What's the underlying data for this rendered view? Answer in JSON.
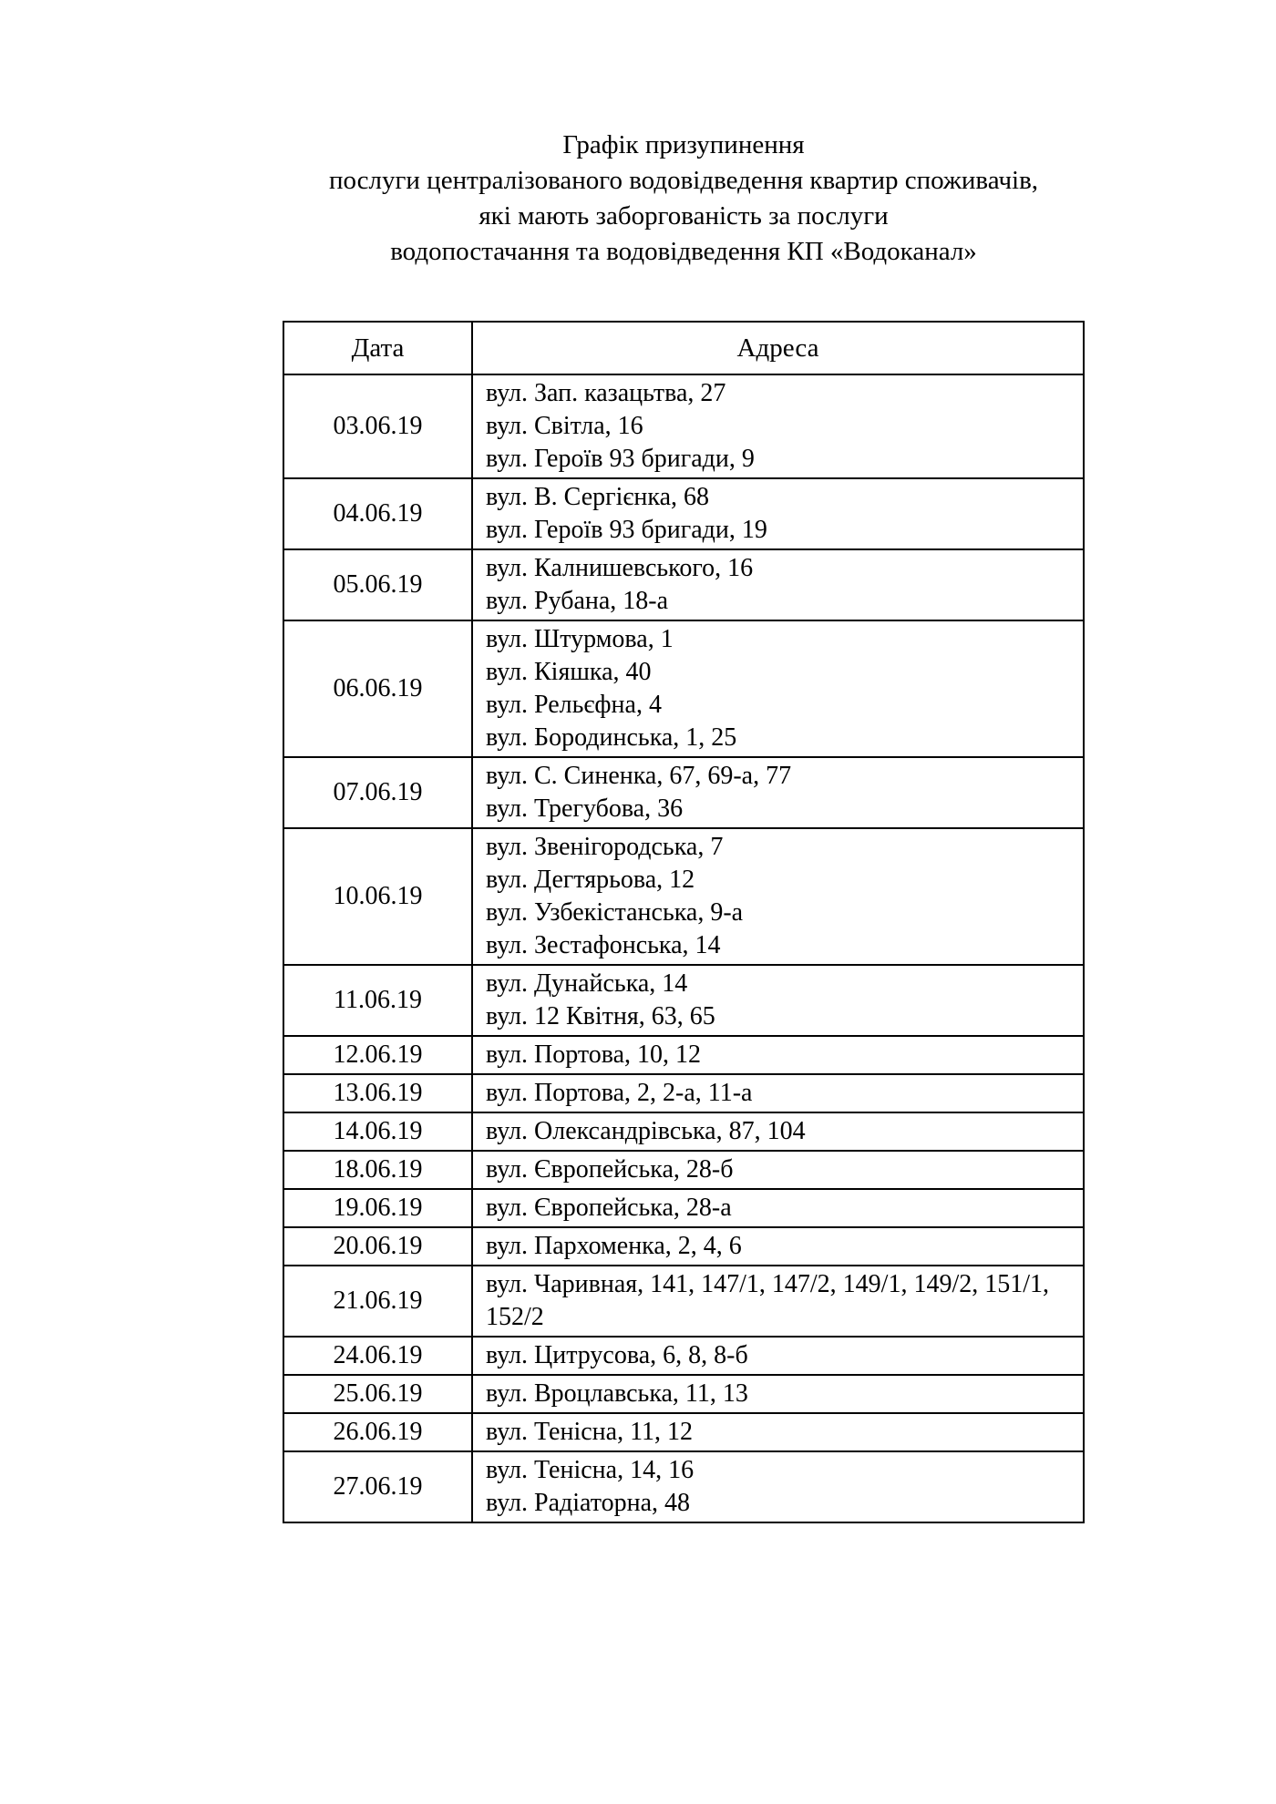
{
  "page": {
    "background_color": "#ffffff",
    "text_color": "#000000",
    "border_color": "#000000"
  },
  "title_lines": [
    "Графік призупинення",
    "послуги централізованого водовідведення квартир споживачів,",
    "які мають заборгованість за послуги",
    "водопостачання та водовідведення КП «Водоканал»"
  ],
  "table": {
    "headers": {
      "date": "Дата",
      "address": "Адреса"
    },
    "rows": [
      {
        "date": "03.06.19",
        "addresses": [
          "вул. Зап. казацьтва, 27",
          "вул. Світла, 16",
          "вул. Героїв 93 бригади, 9"
        ]
      },
      {
        "date": "04.06.19",
        "addresses": [
          "вул. В. Сергієнка, 68",
          "вул. Героїв 93 бригади, 19"
        ]
      },
      {
        "date": "05.06.19",
        "addresses": [
          "вул. Калнишевського, 16",
          "вул. Рубана, 18-а"
        ]
      },
      {
        "date": "06.06.19",
        "addresses": [
          "вул. Штурмова, 1",
          "вул. Кіяшка, 40",
          "вул. Рельєфна, 4",
          "вул. Бородинська, 1, 25"
        ]
      },
      {
        "date": "07.06.19",
        "addresses": [
          "вул. С. Синенка, 67, 69-а, 77",
          "вул. Трегубова, 36"
        ]
      },
      {
        "date": "10.06.19",
        "addresses": [
          "вул. Звенігородська, 7",
          "вул. Дегтярьова, 12",
          "вул. Узбекістанська, 9-а",
          "вул. Зестафонська, 14"
        ]
      },
      {
        "date": "11.06.19",
        "addresses": [
          "вул. Дунайська, 14",
          "вул. 12 Квітня, 63, 65"
        ]
      },
      {
        "date": "12.06.19",
        "addresses": [
          "вул. Портова, 10, 12"
        ]
      },
      {
        "date": "13.06.19",
        "addresses": [
          "вул. Портова, 2, 2-а, 11-а"
        ]
      },
      {
        "date": "14.06.19",
        "addresses": [
          "вул. Олександрівська, 87, 104"
        ]
      },
      {
        "date": "18.06.19",
        "addresses": [
          "вул. Європейська, 28-б"
        ]
      },
      {
        "date": "19.06.19",
        "addresses": [
          "вул. Європейська, 28-а"
        ]
      },
      {
        "date": "20.06.19",
        "addresses": [
          "вул. Пархоменка, 2, 4, 6"
        ]
      },
      {
        "date": "21.06.19",
        "addresses": [
          "вул. Чаривная, 141, 147/1, 147/2, 149/1, 149/2, 151/1, 152/2"
        ]
      },
      {
        "date": "24.06.19",
        "addresses": [
          "вул. Цитрусова, 6, 8, 8-б"
        ]
      },
      {
        "date": "25.06.19",
        "addresses": [
          "вул. Вроцлавська, 11, 13"
        ]
      },
      {
        "date": "26.06.19",
        "addresses": [
          "вул. Тенісна, 11, 12"
        ]
      },
      {
        "date": "27.06.19",
        "addresses": [
          "вул. Тенісна, 14, 16",
          "вул. Радіаторна, 48"
        ]
      }
    ]
  }
}
